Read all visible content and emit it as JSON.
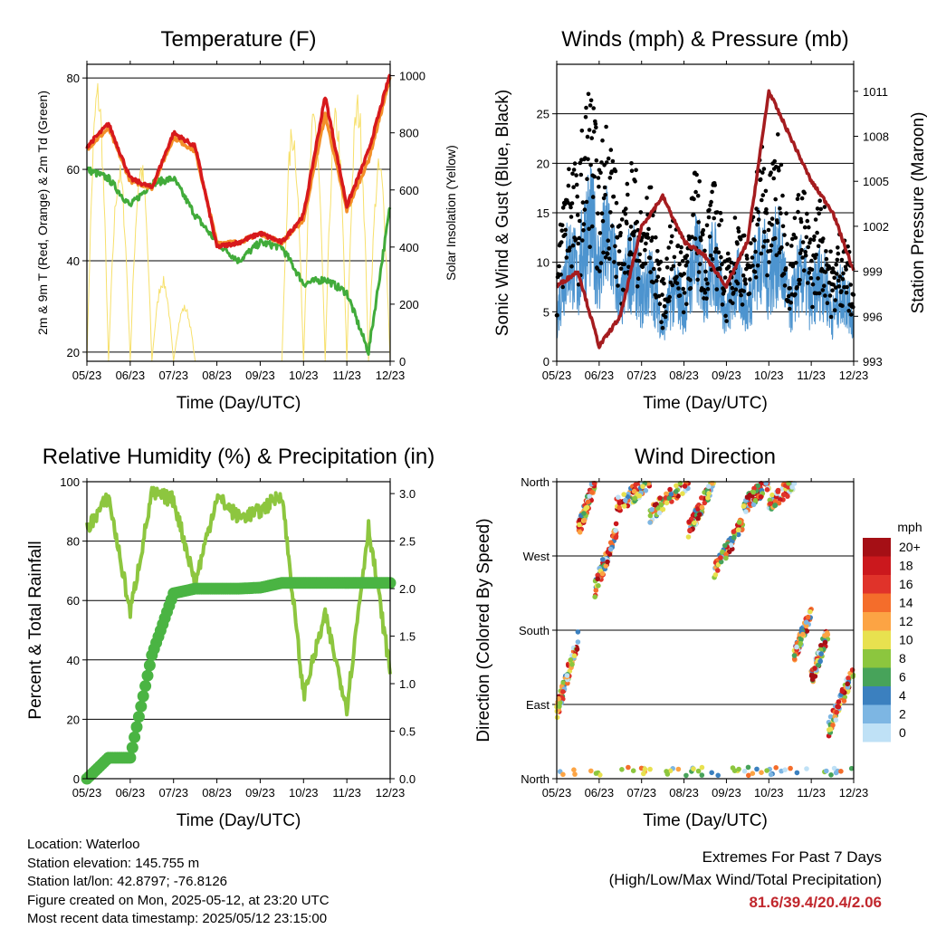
{
  "colors": {
    "t2m": "#d7191c",
    "t9m": "#f39029",
    "td": "#41ab3a",
    "solar": "#f7e06b",
    "wind": "#4d94cf",
    "gust": "#000000",
    "pressure": "#a51c1f",
    "rh": "#8dc63f",
    "precip": "#4ab443"
  },
  "x_ticks": [
    "05/23",
    "06/23",
    "07/23",
    "08/23",
    "09/23",
    "10/23",
    "11/23",
    "12/23"
  ],
  "chart_data": [
    {
      "id": "temperature",
      "type": "line",
      "title": "Temperature (F)",
      "xlabel": "Time (Day/UTC)",
      "ylabel": "2m & 9m T (Red, Orange) & 2m Td (Green)",
      "y2label": "Solar Insolation (Yellow)",
      "ylim": [
        18,
        83
      ],
      "y_ticks": [
        20,
        40,
        60,
        80
      ],
      "y2lim": [
        0,
        1040
      ],
      "y2_ticks": [
        0,
        200,
        400,
        600,
        800,
        1000
      ],
      "x": [
        0,
        0.5,
        1,
        1.5,
        2,
        2.5,
        3,
        3.5,
        4,
        4.5,
        5,
        5.5,
        6,
        6.5,
        7
      ],
      "series": [
        {
          "key": "t2m",
          "values": [
            65,
            70,
            58,
            56,
            68,
            65,
            43,
            44,
            46,
            44,
            50,
            76,
            52,
            64,
            81
          ]
        },
        {
          "key": "t9m",
          "values": [
            64.5,
            69,
            57.5,
            56,
            67,
            64,
            44,
            44,
            46,
            44,
            49,
            72,
            51,
            62,
            80
          ]
        },
        {
          "key": "td",
          "values": [
            60,
            58,
            52,
            57,
            58,
            50,
            44,
            40,
            44,
            43,
            35,
            36,
            33,
            20,
            52
          ]
        },
        {
          "key": "solar",
          "axis": "y2",
          "peaks": [
            1000,
            700,
            720,
            300,
            200,
            0,
            0,
            0,
            0,
            850,
            900,
            900,
            950,
            720
          ]
        }
      ]
    },
    {
      "id": "winds",
      "type": "line",
      "title": "Winds (mph) & Pressure (mb)",
      "xlabel": "Time (Day/UTC)",
      "ylabel": "Sonic Wind & Gust (Blue, Black)",
      "y2label": "Station Pressure (Maroon)",
      "ylim": [
        0,
        30
      ],
      "y_ticks": [
        0,
        5,
        10,
        15,
        20,
        25
      ],
      "y2lim": [
        993,
        1012.8
      ],
      "y2_ticks": [
        993,
        996,
        999,
        1002,
        1005,
        1008,
        1011
      ],
      "x": [
        0,
        0.5,
        1,
        1.5,
        2,
        2.5,
        3,
        3.5,
        4,
        4.5,
        5,
        5.5,
        6,
        6.5,
        7
      ],
      "series": [
        {
          "key": "wind",
          "values": [
            8,
            14,
            16,
            10,
            11,
            6,
            9,
            13,
            8,
            9,
            14,
            9,
            10,
            8,
            7
          ]
        },
        {
          "key": "gust",
          "values": [
            12,
            22,
            24,
            16,
            18,
            10,
            14,
            17,
            12,
            13,
            22,
            14,
            15,
            12,
            10
          ]
        },
        {
          "key": "pressure",
          "axis": "y2",
          "values": [
            998,
            999,
            994,
            996,
            1002,
            1004,
            1001,
            1000,
            998,
            1001,
            1011,
            1008,
            1005,
            1003,
            999
          ]
        }
      ]
    },
    {
      "id": "humidity",
      "type": "line",
      "title": "Relative Humidity (%) & Precipitation (in)",
      "xlabel": "Time (Day/UTC)",
      "ylabel": "Percent & Total Rainfall",
      "ylim": [
        0,
        100
      ],
      "y_ticks": [
        0,
        20,
        40,
        60,
        80,
        100
      ],
      "y2lim": [
        0,
        3.125
      ],
      "y2_ticks": [
        "0.0",
        "0.5",
        "1.0",
        "1.5",
        "2.0",
        "2.5",
        "3.0"
      ],
      "x": [
        0,
        0.5,
        1,
        1.5,
        2,
        2.5,
        3,
        3.5,
        4,
        4.5,
        5,
        5.5,
        6,
        6.5,
        7
      ],
      "series": [
        {
          "key": "rh",
          "values": [
            84,
            95,
            56,
            96,
            94,
            66,
            95,
            88,
            90,
            96,
            28,
            55,
            24,
            85,
            36
          ]
        },
        {
          "key": "precip",
          "axis": "y2",
          "values": [
            0,
            0.22,
            0.22,
            1.3,
            1.95,
            2.0,
            2.0,
            2.0,
            2.01,
            2.06,
            2.06,
            2.06,
            2.06,
            2.06,
            2.06
          ]
        }
      ]
    },
    {
      "id": "direction",
      "type": "scatter",
      "title": "Wind Direction",
      "xlabel": "Time (Day/UTC)",
      "ylabel": "Direction (Colored By Speed)",
      "y_tick_labels": [
        "North",
        "East",
        "South",
        "West",
        "North"
      ],
      "ylim": [
        0,
        360
      ],
      "legend": {
        "title": "mph",
        "labels": [
          "20+",
          "18",
          "16",
          "14",
          "12",
          "10",
          "8",
          "6",
          "4",
          "2",
          "0"
        ],
        "colors": [
          "#a50f15",
          "#cb181d",
          "#e0332a",
          "#f46d2b",
          "#fca444",
          "#e8e14f",
          "#8cc63e",
          "#47a35a",
          "#3b80bf",
          "#7db6e3",
          "#bfe1f6"
        ]
      }
    }
  ],
  "footer": {
    "location": "Location: Waterloo",
    "elevation": "Station elevation: 145.755 m",
    "latlon": "Station lat/lon: 42.8797; -76.8126",
    "created": "Figure created on Mon, 2025-05-12, at 23:20 UTC",
    "recent": "Most recent data timestamp: 2025/05/12 23:15:00"
  },
  "extremes": {
    "title": "Extremes For Past 7 Days",
    "subtitle": "(High/Low/Max Wind/Total Precipitation)",
    "values": "81.6/39.4/20.4/2.06"
  }
}
